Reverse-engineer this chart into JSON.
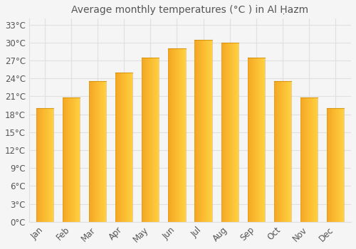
{
  "title": "Average monthly temperatures (°C ) in Al Ḥazm",
  "months": [
    "Jan",
    "Feb",
    "Mar",
    "Apr",
    "May",
    "Jun",
    "Jul",
    "Aug",
    "Sep",
    "Oct",
    "Nov",
    "Dec"
  ],
  "temperatures": [
    19.0,
    20.8,
    23.5,
    25.0,
    27.5,
    29.0,
    30.5,
    30.0,
    27.5,
    23.5,
    20.8,
    19.0
  ],
  "bar_color_left": "#F5A623",
  "bar_color_right": "#FFD040",
  "background_color": "#f5f5f5",
  "grid_color": "#e0e0e0",
  "text_color": "#555555",
  "yticks": [
    0,
    3,
    6,
    9,
    12,
    15,
    18,
    21,
    24,
    27,
    30,
    33
  ],
  "ylim": [
    0,
    34
  ],
  "title_fontsize": 10,
  "tick_fontsize": 8.5
}
